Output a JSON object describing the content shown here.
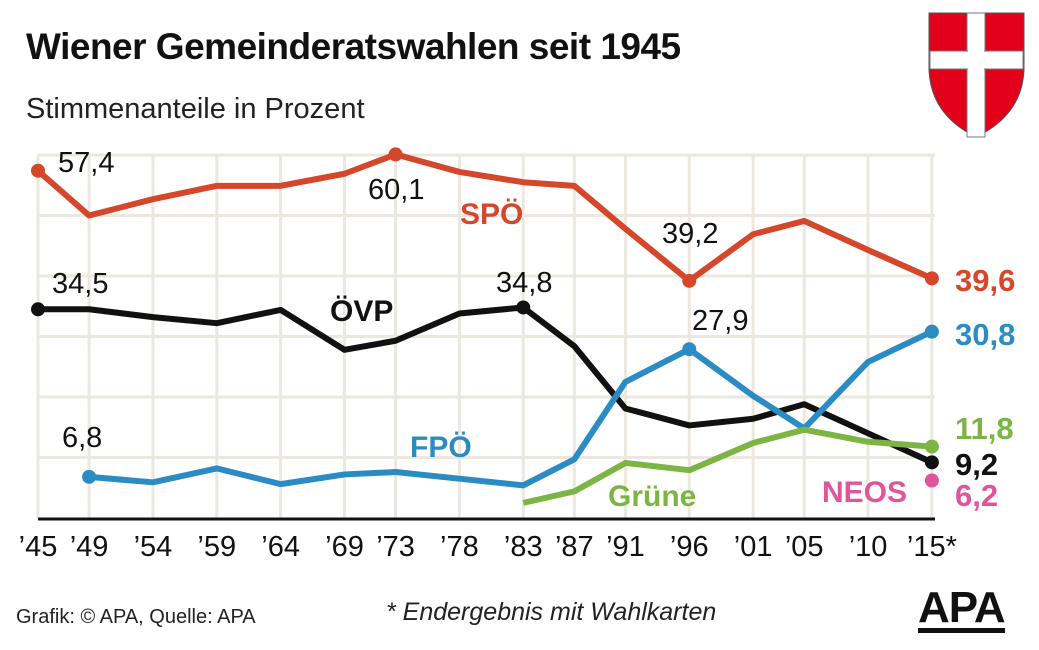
{
  "header": {
    "title": "Wiener Gemeinderatswahlen seit 1945",
    "subtitle": "Stimmenanteile in Prozent"
  },
  "footer": {
    "source": "Grafik: © APA, Quelle: APA",
    "footnote": "* Endergebnis mit Wahlkarten",
    "logo": "APA"
  },
  "colors": {
    "SPÖ": "#d4472a",
    "ÖVP": "#111111",
    "FPÖ": "#2b8cc4",
    "Grüne": "#7db544",
    "NEOS": "#e0559a",
    "grid": "#ede8df",
    "shield_red": "#e3001b"
  },
  "chart_data": {
    "type": "line",
    "title": "Wiener Gemeinderatswahlen seit 1945",
    "subtitle": "Stimmenanteile in Prozent",
    "x": [
      1945,
      1949,
      1954,
      1959,
      1964,
      1969,
      1973,
      1978,
      1983,
      1987,
      1991,
      1996,
      2001,
      2005,
      2010,
      2015
    ],
    "tick_labels": [
      "’45",
      "’49",
      "’54",
      "’59",
      "’64",
      "’69",
      "’73",
      "’78",
      "’83",
      "’87",
      "’91",
      "’96",
      "’01",
      "’05",
      "’10",
      "’15*"
    ],
    "ylim": [
      0,
      60
    ],
    "grid": true,
    "series": [
      {
        "name": "SPÖ",
        "values": [
          57.4,
          50.0,
          52.7,
          54.9,
          54.9,
          56.9,
          60.1,
          57.2,
          55.5,
          54.9,
          47.8,
          39.2,
          46.9,
          49.1,
          44.3,
          39.6
        ]
      },
      {
        "name": "ÖVP",
        "values": [
          34.5,
          34.5,
          33.2,
          32.2,
          34.4,
          27.8,
          29.3,
          33.8,
          34.8,
          28.4,
          18.1,
          15.3,
          16.4,
          18.8,
          14.0,
          9.2
        ]
      },
      {
        "name": "FPÖ",
        "values": [
          null,
          6.8,
          5.9,
          8.2,
          5.6,
          7.2,
          7.6,
          6.5,
          5.4,
          9.7,
          22.5,
          27.9,
          20.2,
          14.8,
          25.8,
          30.8
        ]
      },
      {
        "name": "Grüne",
        "values": [
          null,
          null,
          null,
          null,
          null,
          null,
          null,
          null,
          2.5,
          4.4,
          9.1,
          7.9,
          12.4,
          14.6,
          12.6,
          11.8
        ]
      },
      {
        "name": "NEOS",
        "values": [
          null,
          null,
          null,
          null,
          null,
          null,
          null,
          null,
          null,
          null,
          null,
          null,
          null,
          null,
          null,
          6.2
        ]
      }
    ],
    "annotations": [
      {
        "series": "SPÖ",
        "x": 1945,
        "text": "57,4"
      },
      {
        "series": "SPÖ",
        "x": 1973,
        "text": "60,1"
      },
      {
        "series": "SPÖ",
        "x": 1996,
        "text": "39,2"
      },
      {
        "series": "SPÖ",
        "x": 2015,
        "text": "39,6"
      },
      {
        "series": "ÖVP",
        "x": 1945,
        "text": "34,5"
      },
      {
        "series": "ÖVP",
        "x": 1983,
        "text": "34,8"
      },
      {
        "series": "ÖVP",
        "x": 2015,
        "text": "9,2"
      },
      {
        "series": "FPÖ",
        "x": 1949,
        "text": "6,8"
      },
      {
        "series": "FPÖ",
        "x": 1996,
        "text": "27,9"
      },
      {
        "series": "FPÖ",
        "x": 2015,
        "text": "30,8"
      },
      {
        "series": "Grüne",
        "x": 2015,
        "text": "11,8"
      },
      {
        "series": "NEOS",
        "x": 2015,
        "text": "6,2"
      }
    ]
  }
}
